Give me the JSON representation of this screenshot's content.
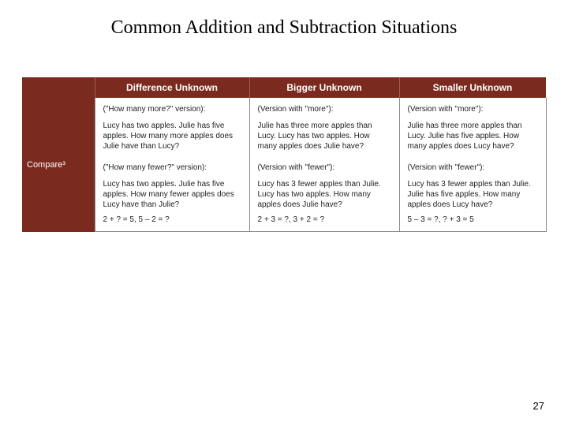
{
  "colors": {
    "maroon": "#7a2a1e",
    "background": "#ffffff",
    "cell_border": "#8a8a8a",
    "text": "#000000",
    "cell_text": "#222222"
  },
  "title": "Common Addition and Subtraction Situations",
  "pageNumber": "27",
  "table": {
    "rowHeader": "Compare³",
    "columns": [
      "Difference Unknown",
      "Bigger Unknown",
      "Smaller Unknown"
    ],
    "cells": {
      "diff": {
        "v1Label": "(\"How many more?\" version):",
        "v1Body": "Lucy has two apples. Julie has five apples. How many more apples does Julie have than Lucy?",
        "v2Label": "(\"How many fewer?\" version):",
        "v2Body": "Lucy has two apples. Julie has five apples. How many fewer apples does Lucy have than Julie?",
        "eq": "2 + ? = 5,  5 – 2 = ?"
      },
      "bigger": {
        "v1Label": "(Version with \"more\"):",
        "v1Body": "Julie has three more apples than Lucy. Lucy has two apples. How many apples does Julie have?",
        "v2Label": "(Version with \"fewer\"):",
        "v2Body": "Lucy has 3 fewer apples than Julie. Lucy has two apples. How many apples does Julie have?",
        "eq": "2 + 3 = ?,  3 + 2 = ?"
      },
      "smaller": {
        "v1Label": "(Version with \"more\"):",
        "v1Body": "Julie has three more apples than Lucy. Julie has five apples. How many apples does Lucy have?",
        "v2Label": "(Version with \"fewer\"):",
        "v2Body": "Lucy has 3 fewer apples than Julie. Julie has five apples. How many apples does Lucy have?",
        "eq": "5 – 3 = ?,  ? + 3 = 5"
      }
    }
  }
}
